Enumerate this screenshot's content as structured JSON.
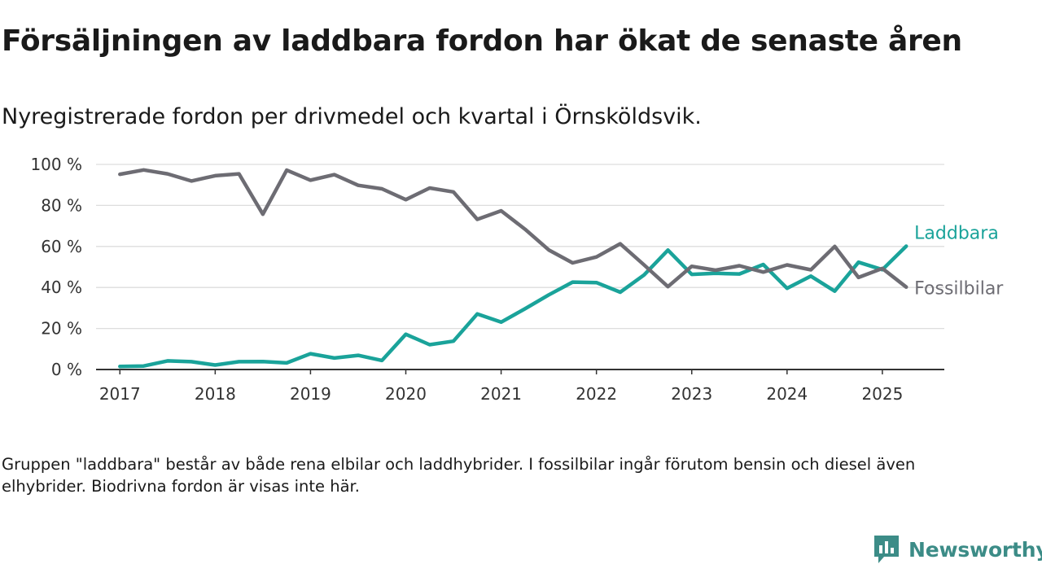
{
  "title": "Försäljningen av laddbara fordon har ökat de senaste åren",
  "subtitle": "Nyregistrerade fordon per drivmedel och kvartal i Örnsköldsvik.",
  "footnote": "Gruppen \"laddbara\" består av både rena elbilar och laddhybrider. I fossilbilar ingår förutom bensin och diesel även elhybrider. Biodrivna fordon är visas inte här.",
  "brand": {
    "name": "Newsworthy",
    "color": "#3c8c87"
  },
  "chart_data": {
    "type": "line",
    "xlabel": "",
    "ylabel": "",
    "ylim": [
      0,
      100
    ],
    "xlim": [
      2016.75,
      2025.65
    ],
    "grid": true,
    "legend": "inline-right",
    "y_ticks": [
      {
        "value": 0,
        "label": "0 %"
      },
      {
        "value": 20,
        "label": "20 %"
      },
      {
        "value": 40,
        "label": "40 %"
      },
      {
        "value": 60,
        "label": "60 %"
      },
      {
        "value": 80,
        "label": "80 %"
      },
      {
        "value": 100,
        "label": "100 %"
      }
    ],
    "x_ticks": [
      {
        "value": 2017,
        "label": "2017"
      },
      {
        "value": 2018,
        "label": "2018"
      },
      {
        "value": 2019,
        "label": "2019"
      },
      {
        "value": 2020,
        "label": "2020"
      },
      {
        "value": 2021,
        "label": "2021"
      },
      {
        "value": 2022,
        "label": "2022"
      },
      {
        "value": 2023,
        "label": "2023"
      },
      {
        "value": 2024,
        "label": "2024"
      },
      {
        "value": 2025,
        "label": "2025"
      }
    ],
    "x": [
      "2017 Q1",
      "2017 Q2",
      "2017 Q3",
      "2017 Q4",
      "2018 Q1",
      "2018 Q2",
      "2018 Q3",
      "2018 Q4",
      "2019 Q1",
      "2019 Q2",
      "2019 Q3",
      "2019 Q4",
      "2020 Q1",
      "2020 Q2",
      "2020 Q3",
      "2020 Q4",
      "2021 Q1",
      "2021 Q2",
      "2021 Q3",
      "2021 Q4",
      "2022 Q1",
      "2022 Q2",
      "2022 Q3",
      "2022 Q4",
      "2023 Q1",
      "2023 Q2",
      "2023 Q3",
      "2023 Q4",
      "2024 Q1",
      "2024 Q2",
      "2024 Q3",
      "2024 Q4",
      "2025 Q1",
      "2025 Q2"
    ],
    "series": [
      {
        "name": "Laddbara",
        "color": "#1aa39a",
        "values": [
          1.5,
          1.7,
          4.2,
          3.8,
          2.2,
          3.8,
          3.9,
          3.2,
          7.7,
          5.6,
          6.9,
          4.4,
          17.2,
          12.1,
          13.8,
          27.1,
          23.1,
          29.6,
          36.4,
          42.6,
          42.4,
          37.7,
          46.1,
          58.2,
          46.4,
          46.9,
          46.6,
          51.2,
          39.6,
          45.5,
          38.2,
          52.3,
          48.7,
          60.1
        ]
      },
      {
        "name": "Fossilbilar",
        "color": "#6d6c73",
        "values": [
          95.2,
          97.3,
          95.4,
          91.9,
          94.5,
          95.4,
          75.7,
          97.2,
          92.3,
          95.0,
          89.8,
          88.1,
          82.8,
          88.5,
          86.6,
          73.2,
          77.4,
          68.4,
          58.3,
          52.0,
          54.9,
          61.3,
          51.0,
          40.4,
          50.3,
          48.4,
          50.6,
          47.5,
          51.0,
          48.6,
          60.0,
          44.9,
          49.3,
          40.2
        ]
      }
    ]
  }
}
